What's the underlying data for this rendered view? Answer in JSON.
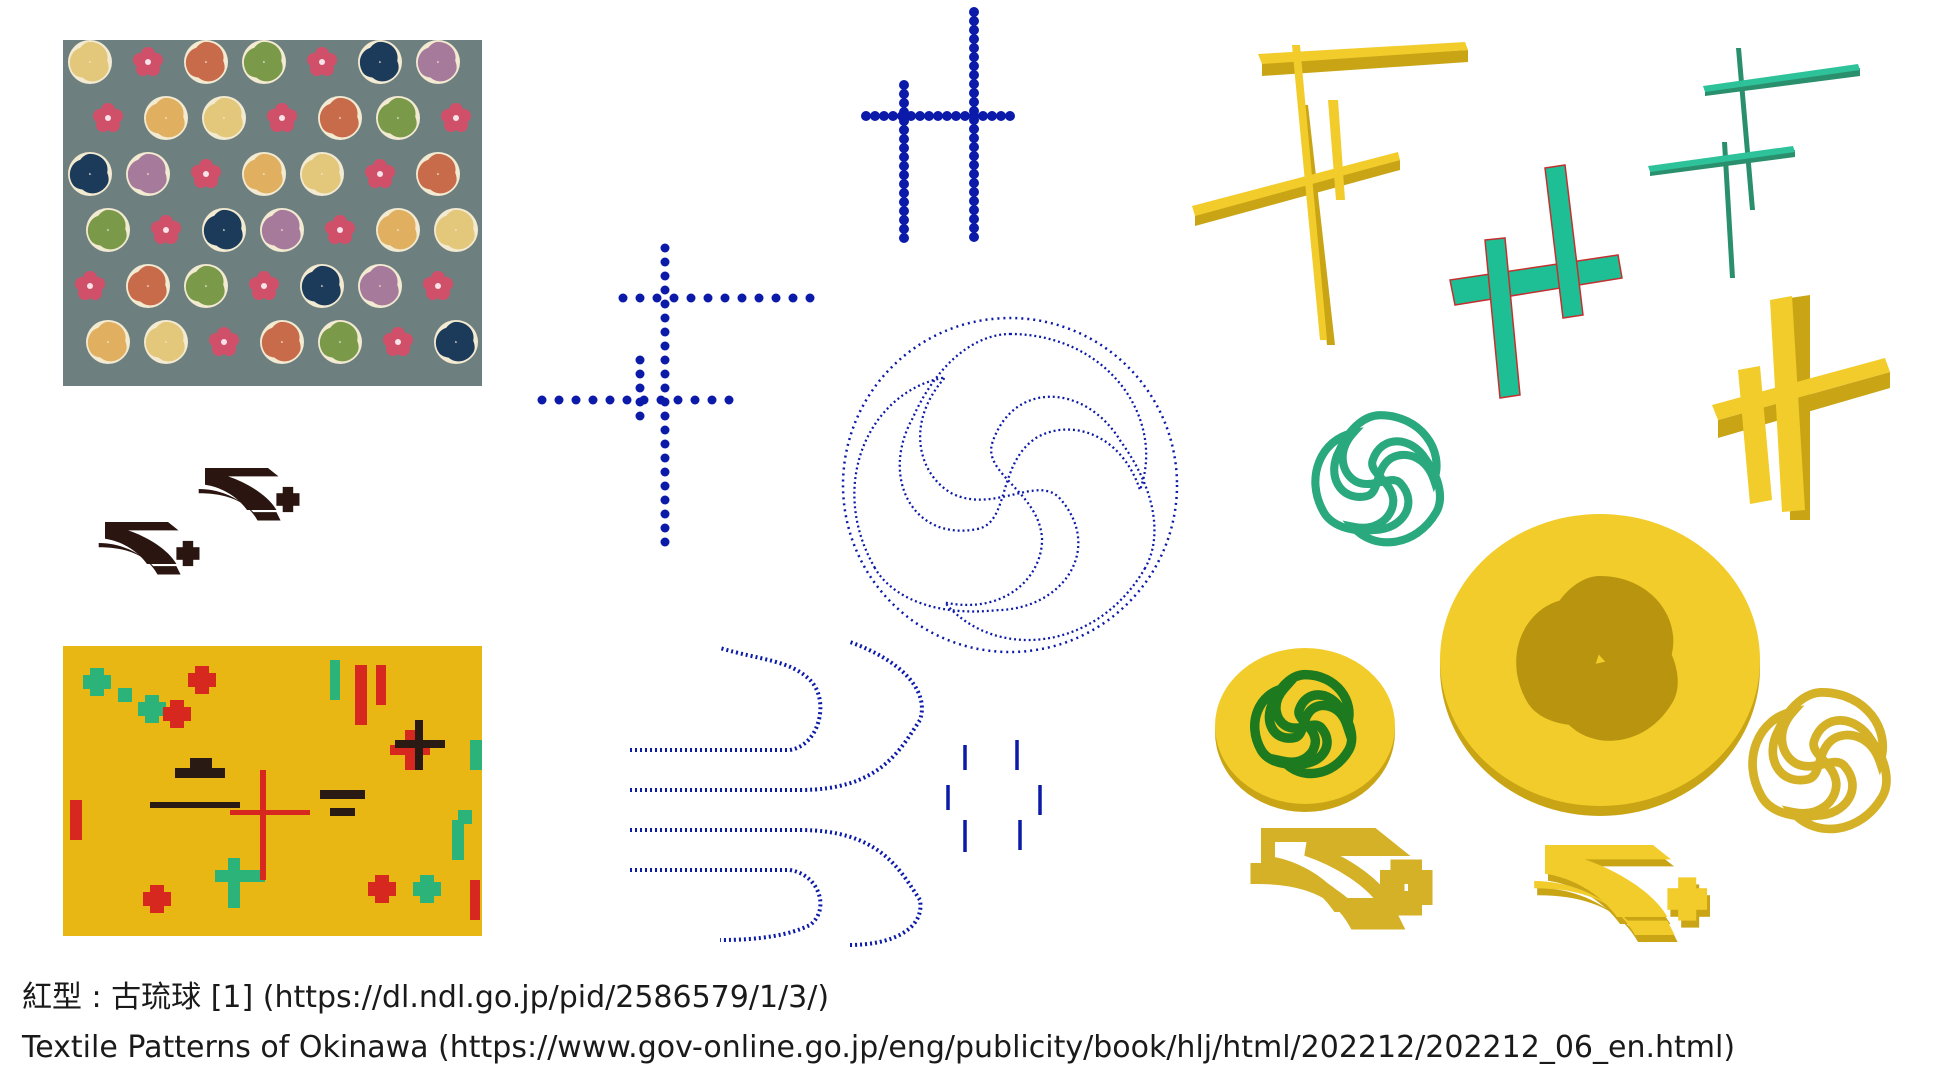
{
  "captions": {
    "line1": "紅型 : 古琉球 [1] (https://dl.ndl.go.jp/pid/2586579/1/3/)",
    "line2": "Textile Patterns of Okinawa (https://www.gov-online.go.jp/eng/publicity/book/hlj/html/202212/202212_06_en.html)"
  },
  "colors": {
    "dots_blue": "#0b1aa8",
    "gold": "#f2cc2a",
    "gold_dark": "#c9a516",
    "teal": "#1fbf95",
    "teal_dark": "#2a8f6d",
    "green_ring": "#1e7a1e",
    "red_outline": "#c43030",
    "swallow_dark": "#2a1510",
    "textile_gray": "#6d7f7f",
    "textile_yellow": "#e8b714"
  },
  "icons": {
    "tomoe": "mitsudomoe-pattern",
    "swallow": "swallow-motif",
    "double-cross": "kasuri-cross-motif"
  }
}
